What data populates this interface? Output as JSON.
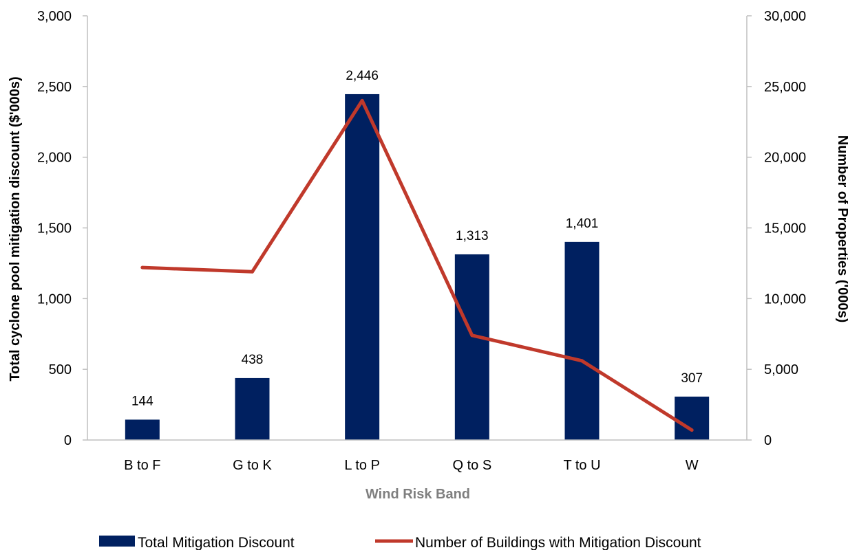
{
  "chart_data": {
    "type": "bar",
    "categories": [
      "B to F",
      "G to K",
      "L to P",
      "Q to S",
      "T to U",
      "W"
    ],
    "series": [
      {
        "name": "Total Mitigation Discount",
        "type": "bar",
        "axis": "left",
        "values": [
          144,
          438,
          2446,
          1313,
          1401,
          307
        ],
        "data_labels": [
          "144",
          "438",
          "2,446",
          "1,313",
          "1,401",
          "307"
        ],
        "color": "#002060"
      },
      {
        "name": "Number of Buildings with Mitigation Discount",
        "type": "line",
        "axis": "right",
        "values": [
          12200,
          11900,
          24000,
          7400,
          5600,
          700
        ],
        "color": "#c0392b"
      }
    ],
    "xlabel": "Wind Risk Band",
    "ylabel": "Total cyclone pool mitigation discount ($'000s)",
    "y2label": "Number of Properties ('000s)",
    "ylim": [
      0,
      3000
    ],
    "y2lim": [
      0,
      30000
    ],
    "yticks": [
      "0",
      "500",
      "1,000",
      "1,500",
      "2,000",
      "2,500",
      "3,000"
    ],
    "y2ticks": [
      "0",
      "5,000",
      "10,000",
      "15,000",
      "20,000",
      "25,000",
      "30,000"
    ],
    "legend_position": "bottom",
    "grid": false
  }
}
